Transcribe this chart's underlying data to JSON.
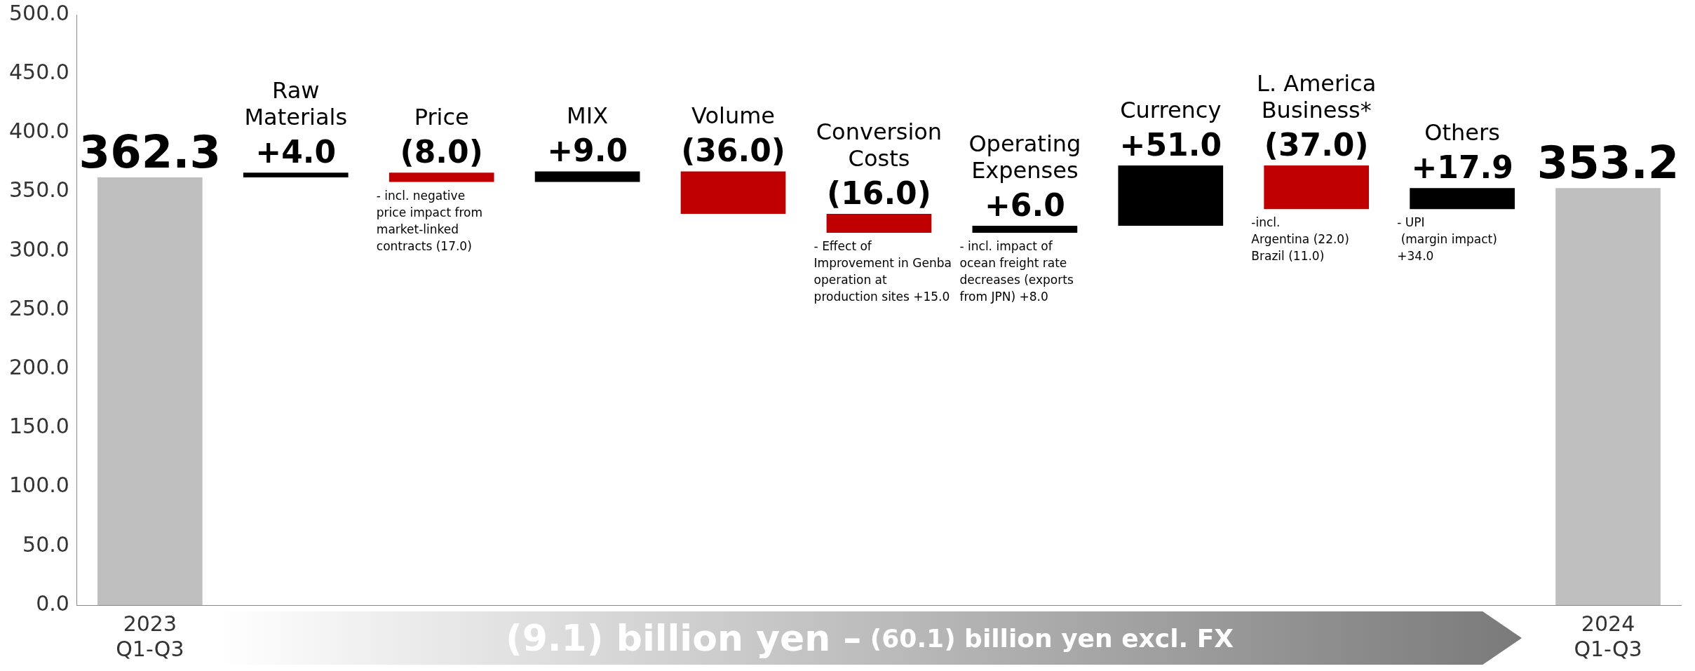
{
  "chart_data": {
    "type": "bar",
    "categories": [
      "2023 Q1-Q3",
      "Raw Materials",
      "Price",
      "MIX",
      "Volume",
      "Conversion Costs",
      "Operating Expenses",
      "Currency",
      "L. America Business*",
      "Others",
      "2024 Q1-Q3"
    ],
    "values": [
      362.3,
      4.0,
      -8.0,
      9.0,
      -36.0,
      -16.0,
      6.0,
      51.0,
      -37.0,
      17.9,
      353.2
    ],
    "base": [
      0,
      362.3,
      366.3,
      358.3,
      367.3,
      331.3,
      315.3,
      321.3,
      372.3,
      335.3,
      0
    ],
    "colors": [
      "#bfbfbf",
      "#000000",
      "#c00000",
      "#000000",
      "#c00000",
      "#c00000",
      "#000000",
      "#000000",
      "#c00000",
      "#000000",
      "#bfbfbf"
    ],
    "value_labels": [
      "362.3",
      "+4.0",
      "(8.0)",
      "+9.0",
      "(36.0)",
      "(16.0)",
      "+6.0",
      "+51.0",
      "(37.0)",
      "+17.9",
      "353.2"
    ],
    "ylim": [
      0,
      500
    ],
    "yticks": [
      {
        "value": 0,
        "label": "0.0"
      },
      {
        "value": 50,
        "label": "50.0"
      },
      {
        "value": 100,
        "label": "100.0"
      },
      {
        "value": 150,
        "label": "150.0"
      },
      {
        "value": 200,
        "label": "200.0"
      },
      {
        "value": 250,
        "label": "250.0"
      },
      {
        "value": 300,
        "label": "300.0"
      },
      {
        "value": 350,
        "label": "350.0"
      },
      {
        "value": 400,
        "label": "400.0"
      },
      {
        "value": 450,
        "label": "450.0"
      },
      {
        "value": 500,
        "label": "500.0"
      }
    ],
    "legend": false,
    "annotations": [
      {
        "text": "- incl. negative\nprice impact from\nmarket-linked\ncontracts (17.0)",
        "x": "Price",
        "y": 358.3
      },
      {
        "text": "- Effect of\nImprovement in Genba\noperation at\nproduction sites +15.0",
        "x": "Conversion Costs",
        "y": 315.3
      },
      {
        "text": "- incl. impact of\nocean freight rate\ndecreases (exports\nfrom JPN) +8.0",
        "x": "Operating Expenses",
        "y": 315.3
      },
      {
        "text": "-incl.\nArgentina (22.0)\nBrazil (11.0)",
        "x": "L. America Business*",
        "y": 335.3
      },
      {
        "text": "- UPI\n (margin impact)\n+34.0",
        "x": "Others",
        "y": 335.3
      },
      "(9.1) billion yen –",
      "(60.1) billion yen excl. FX"
    ]
  }
}
